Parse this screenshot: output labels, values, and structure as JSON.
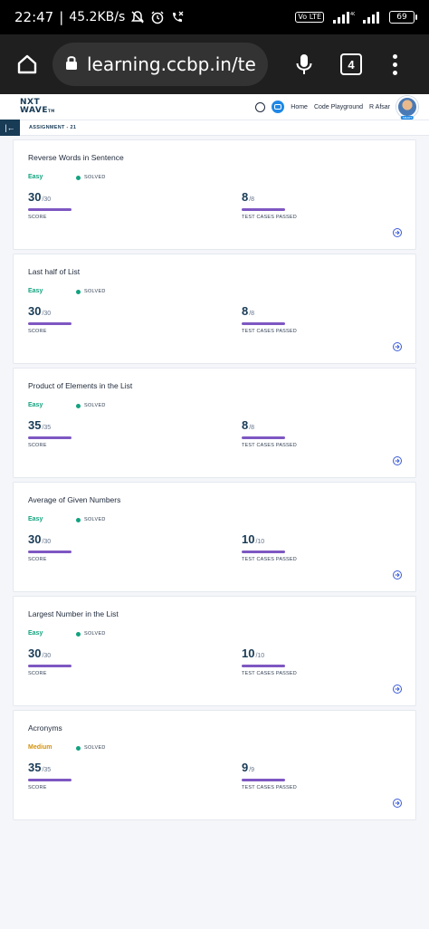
{
  "status_bar": {
    "time": "22:47",
    "speed": "45.2KB/s",
    "volte": "Vo LTE",
    "battery": "69"
  },
  "browser": {
    "url": "learning.ccbp.in/tech-fo",
    "tab_count": "4"
  },
  "header": {
    "logo_line1": "NXT",
    "logo_line2": "WAVE",
    "logo_tm": "TM",
    "home_label": "Home",
    "playground_label": "Code Playground",
    "user_name": "R Afsar",
    "avatar_tag": "SMART"
  },
  "sub_header": {
    "collapse_label": "|←",
    "assignment_label": "ASSIGNMENT - 21"
  },
  "labels": {
    "solved": "SOLVED",
    "score": "SCORE",
    "test_cases": "TEST CASES PASSED"
  },
  "questions": [
    {
      "title": "Reverse Words in Sentence",
      "difficulty": "Easy",
      "score": "30",
      "score_total": "/30",
      "tc": "8",
      "tc_total": "/8"
    },
    {
      "title": "Last half of List",
      "difficulty": "Easy",
      "score": "30",
      "score_total": "/30",
      "tc": "8",
      "tc_total": "/8"
    },
    {
      "title": "Product of Elements in the List",
      "difficulty": "Easy",
      "score": "35",
      "score_total": "/35",
      "tc": "8",
      "tc_total": "/8"
    },
    {
      "title": "Average of Given Numbers",
      "difficulty": "Easy",
      "score": "30",
      "score_total": "/30",
      "tc": "10",
      "tc_total": "/10"
    },
    {
      "title": "Largest Number in the List",
      "difficulty": "Easy",
      "score": "30",
      "score_total": "/30",
      "tc": "10",
      "tc_total": "/10"
    },
    {
      "title": "Acronyms",
      "difficulty": "Medium",
      "score": "35",
      "score_total": "/35",
      "tc": "9",
      "tc_total": "/9"
    }
  ],
  "colors": {
    "easy": "#12a37f",
    "medium": "#d4920b",
    "bar": "#7e57c2",
    "brand": "#183b56"
  }
}
